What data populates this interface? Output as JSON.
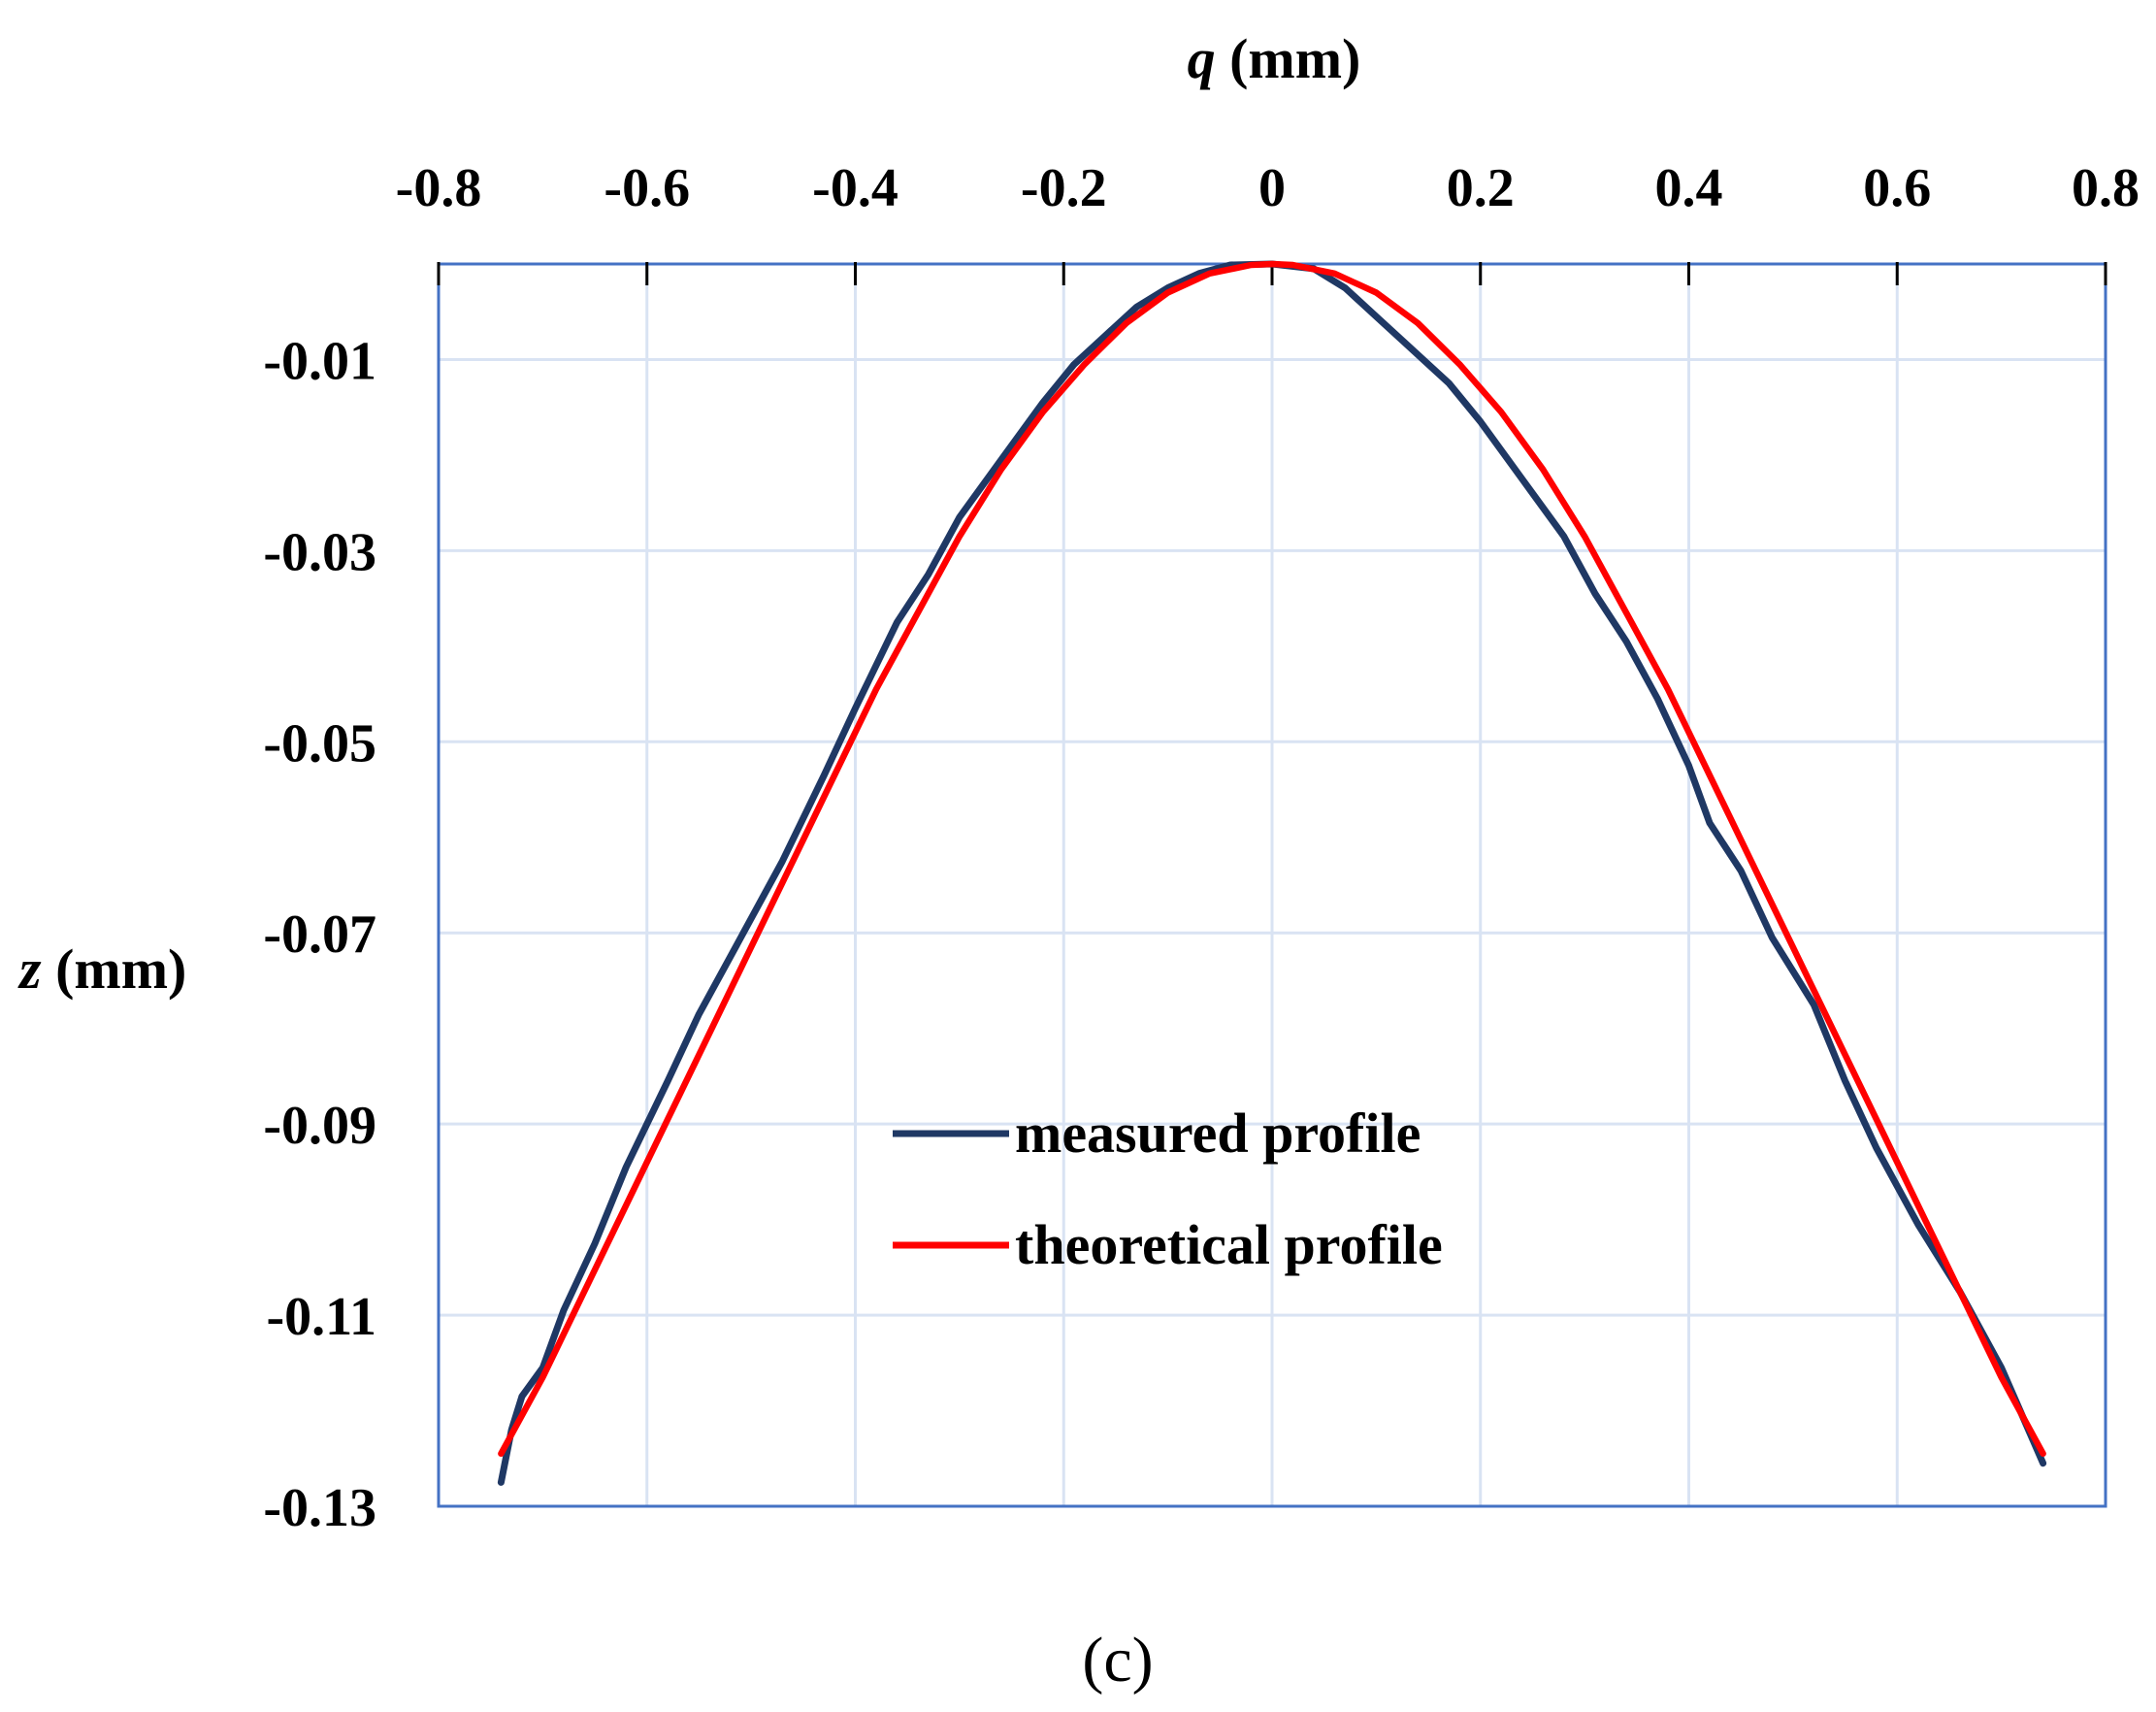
{
  "chart_data": {
    "type": "line",
    "x_axis_title": {
      "var": "q",
      "unit": " (mm)"
    },
    "y_axis_title": {
      "var": "z",
      "unit": " (mm)"
    },
    "xlim": [
      -0.8,
      0.8
    ],
    "ylim": [
      -0.13,
      0.0
    ],
    "x_ticks": [
      -0.8,
      -0.6,
      -0.4,
      -0.2,
      0,
      0.2,
      0.4,
      0.6,
      0.8
    ],
    "x_tick_labels": [
      "-0.8",
      "-0.6",
      "-0.4",
      "-0.2",
      "0",
      "0.2",
      "0.4",
      "0.6",
      "0.8"
    ],
    "y_ticks": [
      -0.01,
      -0.03,
      -0.05,
      -0.07,
      -0.09,
      -0.11,
      -0.13
    ],
    "y_tick_labels": [
      "-0.01",
      "-0.03",
      "-0.05",
      "-0.07",
      "-0.09",
      "-0.11",
      "-0.13"
    ],
    "x_axis_position": "top",
    "grid": true,
    "legend_position": "lower-center",
    "series": [
      {
        "name": "measured profile",
        "color": "#1f3864",
        "x": [
          -0.74,
          -0.73,
          -0.72,
          -0.7,
          -0.68,
          -0.65,
          -0.62,
          -0.58,
          -0.55,
          -0.52,
          -0.5,
          -0.47,
          -0.43,
          -0.4,
          -0.36,
          -0.33,
          -0.3,
          -0.26,
          -0.22,
          -0.19,
          -0.16,
          -0.13,
          -0.1,
          -0.07,
          -0.04,
          0.0,
          0.04,
          0.07,
          0.1,
          0.13,
          0.17,
          0.2,
          0.24,
          0.28,
          0.31,
          0.34,
          0.37,
          0.4,
          0.42,
          0.45,
          0.48,
          0.52,
          0.55,
          0.58,
          0.62,
          0.66,
          0.7,
          0.74
        ],
        "y": [
          -0.1275,
          -0.122,
          -0.1185,
          -0.1155,
          -0.1095,
          -0.1025,
          -0.0945,
          -0.0855,
          -0.0785,
          -0.0725,
          -0.0685,
          -0.0625,
          -0.0535,
          -0.0465,
          -0.0375,
          -0.0325,
          -0.0265,
          -0.0205,
          -0.0145,
          -0.0105,
          -0.0075,
          -0.0045,
          -0.0025,
          -0.001,
          -0.0001,
          0.0,
          -0.0005,
          -0.0025,
          -0.0055,
          -0.0085,
          -0.0125,
          -0.0165,
          -0.0225,
          -0.0285,
          -0.0345,
          -0.0395,
          -0.0455,
          -0.0525,
          -0.0585,
          -0.0635,
          -0.0705,
          -0.0775,
          -0.0855,
          -0.0925,
          -0.1005,
          -0.1075,
          -0.1155,
          -0.1255
        ]
      },
      {
        "name": "theoretical profile",
        "color": "#ff0000",
        "x": [
          -0.74,
          -0.7,
          -0.66,
          -0.62,
          -0.58,
          -0.54,
          -0.5,
          -0.46,
          -0.42,
          -0.38,
          -0.34,
          -0.3,
          -0.26,
          -0.22,
          -0.18,
          -0.14,
          -0.1,
          -0.06,
          -0.02,
          0.0,
          0.02,
          0.06,
          0.1,
          0.14,
          0.18,
          0.22,
          0.26,
          0.3,
          0.34,
          0.38,
          0.42,
          0.46,
          0.5,
          0.54,
          0.58,
          0.62,
          0.66,
          0.7,
          0.74
        ],
        "y": [
          -0.1245,
          -0.1165,
          -0.1075,
          -0.0985,
          -0.0895,
          -0.0805,
          -0.0715,
          -0.0625,
          -0.0535,
          -0.0445,
          -0.0365,
          -0.0285,
          -0.0215,
          -0.0155,
          -0.0105,
          -0.0062,
          -0.003,
          -0.001,
          -0.0001,
          0.0,
          -0.0001,
          -0.001,
          -0.003,
          -0.0062,
          -0.0105,
          -0.0155,
          -0.0215,
          -0.0285,
          -0.0365,
          -0.0445,
          -0.0535,
          -0.0625,
          -0.0715,
          -0.0805,
          -0.0895,
          -0.0985,
          -0.1075,
          -0.1165,
          -0.1245
        ]
      }
    ],
    "caption": "(c)"
  }
}
